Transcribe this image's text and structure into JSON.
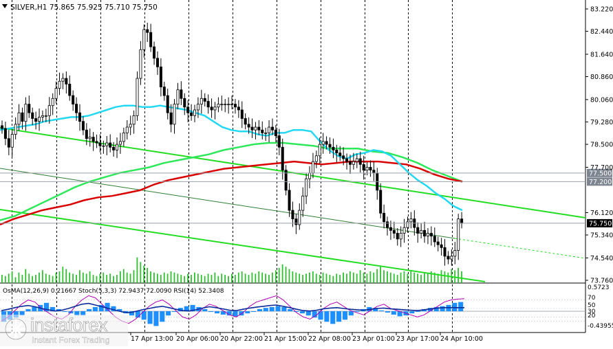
{
  "header": {
    "symbol_line": "SILVER,H1  75.865 75.925 75.710 75.750",
    "menu_icon": "triangle-down-icon"
  },
  "chart_data": {
    "type": "candlestick",
    "symbol": "SILVER",
    "timeframe": "H1",
    "ohlc_last": {
      "open": 75.865,
      "high": 75.925,
      "low": 75.71,
      "close": 75.75
    },
    "ylim": [
      73.76,
      83.22
    ],
    "y_ticks": [
      "83.220",
      "82.440",
      "81.640",
      "80.860",
      "80.060",
      "79.280",
      "78.500",
      "77.700",
      "76.120",
      "75.340",
      "74.540",
      "73.760"
    ],
    "price_labels": [
      {
        "value": "77.500",
        "color": "#ffffff"
      },
      {
        "value": "77.200",
        "color": "#ffffff"
      },
      {
        "value": "75.750",
        "color": "#000000"
      }
    ],
    "x_ticks": [
      "17 Apr 13:00",
      "20 Apr 06:00",
      "20 Apr 22:00",
      "21 Apr 15:00",
      "22 Apr 08:00",
      "23 Apr 01:00",
      "23 Apr 17:00",
      "24 Apr 10:00"
    ],
    "close_series": [
      79.05,
      78.7,
      78.4,
      78.85,
      79.2,
      79.6,
      79.3,
      79.9,
      79.6,
      79.4,
      79.3,
      79.45,
      79.5,
      79.5,
      79.85,
      80.1,
      80.45,
      80.7,
      80.8,
      80.6,
      80.2,
      79.9,
      79.6,
      79.3,
      79.0,
      78.7,
      78.75,
      78.6,
      78.55,
      78.45,
      78.45,
      78.55,
      78.4,
      78.3,
      78.5,
      78.6,
      78.9,
      79.1,
      79.2,
      79.5,
      80.8,
      81.8,
      82.5,
      82.4,
      81.9,
      81.5,
      81.2,
      80.5,
      80.2,
      79.6,
      79.2,
      79.9,
      80.4,
      80.1,
      79.8,
      79.6,
      79.5,
      79.7,
      79.9,
      80.1,
      80.0,
      79.8,
      79.7,
      79.8,
      79.9,
      79.9,
      79.9,
      79.9,
      79.9,
      79.8,
      79.7,
      79.4,
      79.2,
      79.1,
      79.0,
      79.1,
      79.0,
      78.9,
      78.9,
      79.1,
      79.0,
      78.8,
      78.4,
      77.6,
      76.9,
      76.2,
      75.9,
      75.7,
      76.2,
      76.7,
      77.3,
      77.5,
      77.9,
      78.1,
      78.5,
      78.6,
      78.5,
      78.4,
      78.3,
      78.2,
      78.1,
      78.0,
      77.9,
      77.8,
      77.9,
      78.0,
      77.8,
      77.6,
      77.7,
      77.6,
      77.5,
      76.9,
      76.1,
      75.8,
      75.6,
      75.5,
      75.4,
      75.2,
      75.4,
      75.6,
      75.8,
      75.9,
      75.6,
      75.4,
      75.5,
      75.3,
      75.4,
      75.3,
      75.1,
      75.0,
      74.9,
      74.6,
      74.5,
      74.6,
      74.8,
      75.9,
      75.75
    ],
    "ma_blue": [
      79.0,
      79.05,
      79.1,
      79.15,
      79.2,
      79.3,
      79.35,
      79.4,
      79.45,
      79.45,
      79.5,
      79.6,
      79.7,
      79.8,
      79.85,
      79.85,
      79.8,
      79.8,
      79.85,
      79.8,
      79.75,
      79.7,
      79.6,
      79.5,
      79.3,
      79.1,
      79.0,
      78.95,
      78.95,
      78.85,
      78.8,
      78.9,
      78.9,
      79.0,
      79.0,
      78.95,
      78.6,
      78.3,
      78.1,
      78.0,
      78.15,
      78.2,
      78.3,
      78.25,
      78.1,
      77.8,
      77.5,
      77.25,
      77.05,
      76.8,
      76.6,
      76.35,
      76.2
    ],
    "ma_red": [
      75.7,
      75.9,
      76.05,
      76.2,
      76.3,
      76.4,
      76.55,
      76.65,
      76.7,
      76.8,
      76.9,
      77.1,
      77.25,
      77.35,
      77.45,
      77.55,
      77.65,
      77.7,
      77.75,
      77.8,
      77.85,
      77.9,
      77.85,
      77.8,
      77.85,
      77.9,
      77.9,
      77.9,
      77.85,
      77.8,
      77.65,
      77.45,
      77.3,
      77.2
    ],
    "ma_green": [
      75.85,
      76.0,
      76.25,
      76.5,
      76.75,
      77.0,
      77.2,
      77.35,
      77.5,
      77.6,
      77.7,
      77.85,
      77.95,
      78.05,
      78.15,
      78.3,
      78.4,
      78.5,
      78.55,
      78.55,
      78.5,
      78.45,
      78.35,
      78.35,
      78.35,
      78.25,
      78.2,
      78.05,
      77.85,
      77.6,
      77.4,
      77.2
    ],
    "volume": [
      7,
      6,
      8,
      10,
      5,
      9,
      7,
      12,
      8,
      6,
      7,
      9,
      11,
      8,
      7,
      6,
      9,
      10,
      14,
      12,
      9,
      8,
      7,
      11,
      9,
      8,
      10,
      7,
      6,
      8,
      9,
      7,
      8,
      6,
      7,
      10,
      12,
      9,
      8,
      11,
      22,
      18,
      15,
      13,
      10,
      9,
      8,
      7,
      9,
      8,
      10,
      9,
      8,
      7,
      6,
      8,
      7,
      9,
      8,
      7,
      6,
      8,
      7,
      9,
      6,
      8,
      7,
      6,
      8,
      7,
      9,
      10,
      8,
      7,
      9,
      8,
      10,
      9,
      8,
      7,
      9,
      11,
      13,
      16,
      14,
      12,
      10,
      9,
      8,
      7,
      8,
      9,
      10,
      8,
      7,
      9,
      8,
      7,
      6,
      8,
      7,
      9,
      8,
      10,
      9,
      8,
      11,
      9,
      8,
      10,
      9,
      12,
      14,
      11,
      10,
      9,
      8,
      7,
      9,
      10,
      8,
      11,
      9,
      8,
      7,
      9,
      8,
      10,
      9,
      8,
      11,
      10,
      9,
      12,
      11,
      13,
      10
    ],
    "indicators_panel": {
      "label": "OsMA(12,26,9) 0.21667  Stoch(5,3,3) 72.9437 72.0090  RSI(14) 52.3408",
      "ylim": [
        -0.43955,
        0.5723
      ],
      "tick_labels": [
        "0.5723",
        "70",
        "50",
        "30",
        "20",
        "-0.43955"
      ],
      "osma": [
        -0.25,
        -0.2,
        -0.15,
        -0.1,
        0.05,
        0.1,
        0.15,
        0.2,
        0.1,
        0.05,
        0.0,
        -0.05,
        -0.1,
        -0.1,
        0.05,
        0.1,
        0.15,
        0.2,
        0.12,
        0.05,
        -0.05,
        -0.1,
        -0.15,
        -0.2,
        -0.3,
        -0.35,
        -0.25,
        -0.1,
        0.0,
        0.08,
        0.12,
        0.15,
        0.1,
        0.05,
        0.0,
        -0.05,
        -0.08,
        -0.1,
        -0.12,
        -0.1,
        -0.05,
        0.0,
        0.05,
        0.08,
        0.1,
        0.12,
        0.1,
        0.05,
        0.0,
        -0.05,
        -0.1,
        -0.15,
        -0.2,
        -0.25,
        -0.3,
        -0.25,
        -0.2,
        -0.1,
        0.0,
        0.05,
        0.1,
        0.08,
        0.02,
        -0.03,
        -0.08,
        -0.12,
        -0.1,
        -0.05,
        0.0,
        0.05,
        0.08,
        0.1,
        0.12,
        0.15,
        0.2,
        0.22
      ],
      "stoch": [
        20,
        30,
        45,
        60,
        70,
        65,
        50,
        40,
        30,
        25,
        35,
        55,
        70,
        80,
        75,
        60,
        45,
        30,
        20,
        15,
        25,
        40,
        55,
        65,
        70,
        60,
        45,
        30,
        25,
        35,
        50,
        60,
        55,
        45,
        35,
        30,
        40,
        55,
        65,
        70,
        75,
        80,
        70,
        55,
        40,
        30,
        25,
        35,
        50,
        60,
        65,
        55,
        45,
        40,
        35,
        45,
        55,
        60,
        50,
        45,
        40,
        35,
        30,
        35,
        45,
        55,
        65,
        70,
        72,
        73
      ],
      "rsi": [
        45,
        48,
        52,
        55,
        57,
        54,
        50,
        47,
        44,
        46,
        50,
        55,
        60,
        62,
        58,
        54,
        50,
        46,
        42,
        40,
        43,
        47,
        50,
        53,
        55,
        52,
        48,
        45,
        44,
        47,
        51,
        54,
        52,
        49,
        46,
        45,
        48,
        51,
        53,
        55,
        57,
        58,
        55,
        52,
        48,
        45,
        44,
        46,
        49,
        51,
        52,
        50,
        48,
        47,
        46,
        48,
        50,
        51,
        49,
        48,
        47,
        46,
        45,
        47,
        49,
        51,
        52,
        52,
        52,
        52
      ]
    }
  },
  "watermark": {
    "name": "instaforex",
    "tagline": "Instant Forex Trading",
    "mark_icon": "instaforex-logo-icon"
  }
}
